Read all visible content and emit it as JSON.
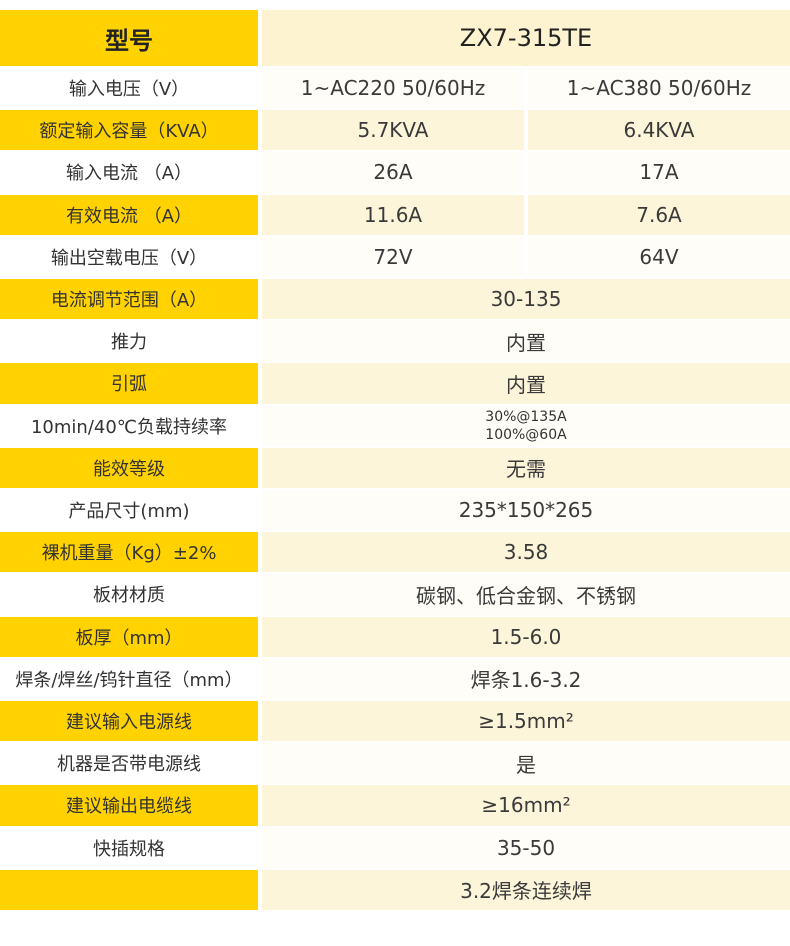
{
  "header": {
    "label": "型号",
    "model": "ZX7-315TE"
  },
  "rows": [
    {
      "label": "输入电压（V）",
      "values": [
        "1~AC220 50/60Hz",
        "1~AC380 50/60Hz"
      ]
    },
    {
      "label": "额定输入容量（KVA）",
      "values": [
        "5.7KVA",
        "6.4KVA"
      ]
    },
    {
      "label": "输入电流 （A）",
      "values": [
        "26A",
        "17A"
      ]
    },
    {
      "label": "有效电流 （A）",
      "values": [
        "11.6A",
        "7.6A"
      ]
    },
    {
      "label": "输出空载电压（V）",
      "values": [
        "72V",
        "64V"
      ]
    },
    {
      "label": "电流调节范围（A）",
      "values": [
        "30-135"
      ]
    },
    {
      "label": "推力",
      "values": [
        "内置"
      ]
    },
    {
      "label": "引弧",
      "values": [
        "内置"
      ]
    },
    {
      "label": "10min/40℃负载持续率",
      "lines": [
        "30%@135A",
        "100%@60A"
      ]
    },
    {
      "label": "能效等级",
      "values": [
        "无需"
      ]
    },
    {
      "label": "产品尺寸(mm)",
      "values": [
        "235*150*265"
      ]
    },
    {
      "label": "裸机重量（Kg）±2%",
      "values": [
        "3.58"
      ]
    },
    {
      "label": "板材材质",
      "values": [
        "碳钢、低合金钢、不锈钢"
      ]
    },
    {
      "label": "板厚（mm）",
      "values": [
        "1.5-6.0"
      ]
    },
    {
      "label": "焊条/焊丝/钨针直径（mm）",
      "values": [
        "焊条1.6-3.2"
      ]
    },
    {
      "label": "建议输入电源线",
      "values": [
        "≥1.5mm²"
      ]
    },
    {
      "label": "机器是否带电源线",
      "values": [
        "是"
      ]
    },
    {
      "label": "建议输出电缆线",
      "values": [
        "≥16mm²"
      ]
    },
    {
      "label": "快插规格",
      "values": [
        "35-50"
      ]
    },
    {
      "values": [
        "3.2焊条连续焊"
      ]
    }
  ]
}
